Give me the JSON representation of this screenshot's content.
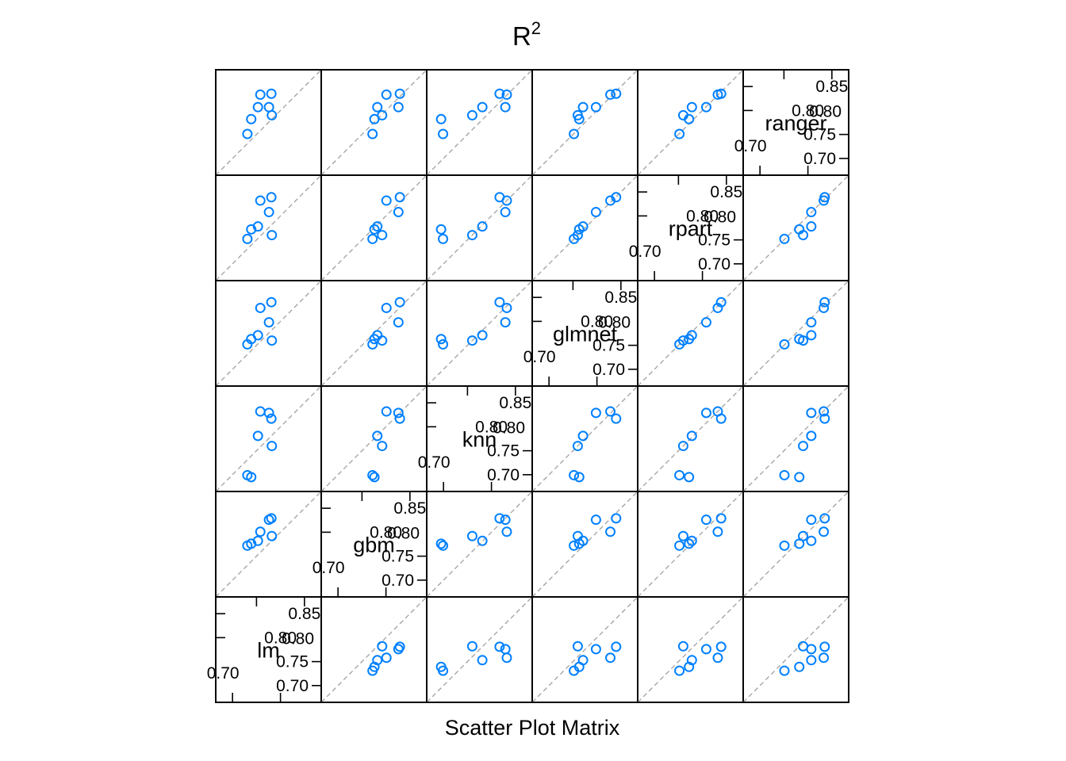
{
  "chart_data": {
    "type": "scatter",
    "title": "R",
    "title_superscript": "2",
    "xlabel": "Scatter Plot Matrix",
    "ylabel": "",
    "grid": false,
    "legend": "none",
    "axis_range": [
      0.665,
      0.885
    ],
    "tick_labels": [
      "0.70",
      "0.75",
      "0.80",
      "0.85"
    ],
    "diagonal_reference_line": true,
    "marker_color": "#0080ff",
    "reference_line_color": "#a0a0a0",
    "variables": [
      "lm",
      "gbm",
      "knn",
      "glmnet",
      "rpart",
      "ranger"
    ],
    "observations": [
      {
        "lm": 0.731,
        "gbm": 0.772,
        "knn": 0.699,
        "glmnet": 0.752,
        "rpart": 0.752,
        "ranger": 0.751
      },
      {
        "lm": 0.753,
        "gbm": 0.782,
        "knn": 0.781,
        "glmnet": 0.771,
        "rpart": 0.778,
        "ranger": 0.807
      },
      {
        "lm": 0.739,
        "gbm": 0.776,
        "knn": 0.695,
        "glmnet": 0.763,
        "rpart": 0.772,
        "ranger": 0.782
      },
      {
        "lm": 0.758,
        "gbm": 0.801,
        "knn": 0.832,
        "glmnet": 0.828,
        "rpart": 0.832,
        "ranger": 0.833
      },
      {
        "lm": 0.776,
        "gbm": 0.826,
        "knn": 0.829,
        "glmnet": 0.798,
        "rpart": 0.808,
        "ranger": 0.807
      },
      {
        "lm": 0.781,
        "gbm": 0.829,
        "knn": 0.817,
        "glmnet": 0.84,
        "rpart": 0.839,
        "ranger": 0.835
      },
      {
        "lm": 0.782,
        "gbm": 0.792,
        "knn": 0.76,
        "glmnet": 0.76,
        "rpart": 0.76,
        "ranger": 0.79
      }
    ]
  }
}
